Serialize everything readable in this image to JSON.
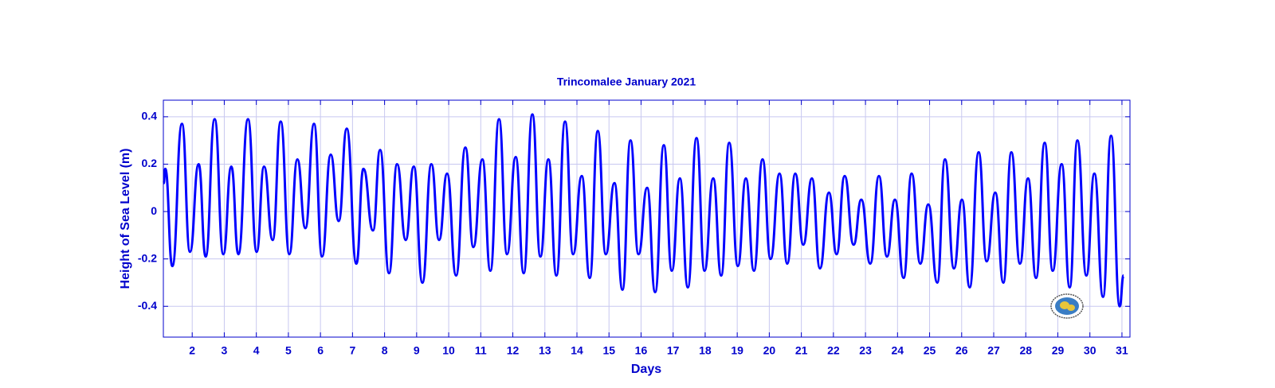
{
  "chart_data": {
    "type": "line",
    "title": "Trincomalee  January 2021",
    "x_label": "Days",
    "y_label": "Height of Sea Level (m)",
    "color": "#0000ff",
    "grid": true,
    "xlim": [
      1.1,
      31.25
    ],
    "ylim": [
      -0.53,
      0.47
    ],
    "xticks": [
      2,
      3,
      4,
      5,
      6,
      7,
      8,
      9,
      10,
      11,
      12,
      13,
      14,
      15,
      16,
      17,
      18,
      19,
      20,
      21,
      22,
      23,
      24,
      25,
      26,
      27,
      28,
      29,
      30,
      31
    ],
    "yticks": [
      0.4,
      0.2,
      0,
      -0.2,
      -0.4
    ],
    "x": [
      1.11,
      1.16,
      1.38,
      1.68,
      1.93,
      2.2,
      2.42,
      2.7,
      2.97,
      3.22,
      3.44,
      3.74,
      4.01,
      4.24,
      4.51,
      4.76,
      5.03,
      5.28,
      5.53,
      5.8,
      6.05,
      6.32,
      6.57,
      6.82,
      7.12,
      7.34,
      7.64,
      7.86,
      8.14,
      8.39,
      8.66,
      8.91,
      9.18,
      9.46,
      9.7,
      9.95,
      10.23,
      10.52,
      10.77,
      11.05,
      11.3,
      11.57,
      11.82,
      12.09,
      12.34,
      12.61,
      12.86,
      13.11,
      13.36,
      13.63,
      13.88,
      14.15,
      14.4,
      14.65,
      14.9,
      15.17,
      15.42,
      15.67,
      15.92,
      16.19,
      16.44,
      16.71,
      16.96,
      17.21,
      17.46,
      17.73,
      17.98,
      18.25,
      18.5,
      18.75,
      19.02,
      19.27,
      19.52,
      19.79,
      20.04,
      20.32,
      20.56,
      20.81,
      21.06,
      21.33,
      21.58,
      21.86,
      22.1,
      22.35,
      22.63,
      22.87,
      23.15,
      23.42,
      23.67,
      23.92,
      24.19,
      24.44,
      24.71,
      24.96,
      25.24,
      25.48,
      25.76,
      26.01,
      26.25,
      26.53,
      26.78,
      27.05,
      27.3,
      27.55,
      27.82,
      28.07,
      28.32,
      28.59,
      28.84,
      29.12,
      29.37,
      29.61,
      29.89,
      30.14,
      30.41,
      30.66,
      30.93,
      31.05
    ],
    "values": [
      0.12,
      0.18,
      -0.23,
      0.37,
      -0.17,
      0.2,
      -0.19,
      0.39,
      -0.18,
      0.19,
      -0.18,
      0.39,
      -0.17,
      0.19,
      -0.12,
      0.38,
      -0.18,
      0.22,
      -0.07,
      0.37,
      -0.19,
      0.24,
      -0.04,
      0.35,
      -0.22,
      0.18,
      -0.08,
      0.26,
      -0.26,
      0.2,
      -0.12,
      0.19,
      -0.3,
      0.2,
      -0.12,
      0.16,
      -0.27,
      0.27,
      -0.15,
      0.22,
      -0.25,
      0.39,
      -0.18,
      0.23,
      -0.26,
      0.41,
      -0.19,
      0.22,
      -0.27,
      0.38,
      -0.18,
      0.15,
      -0.28,
      0.34,
      -0.18,
      0.12,
      -0.33,
      0.3,
      -0.18,
      0.1,
      -0.34,
      0.28,
      -0.25,
      0.14,
      -0.32,
      0.31,
      -0.25,
      0.14,
      -0.27,
      0.29,
      -0.23,
      0.14,
      -0.25,
      0.22,
      -0.2,
      0.16,
      -0.22,
      0.16,
      -0.14,
      0.14,
      -0.24,
      0.08,
      -0.18,
      0.15,
      -0.14,
      0.05,
      -0.22,
      0.15,
      -0.19,
      0.05,
      -0.28,
      0.16,
      -0.22,
      0.03,
      -0.3,
      0.22,
      -0.24,
      0.05,
      -0.32,
      0.25,
      -0.21,
      0.08,
      -0.3,
      0.25,
      -0.22,
      0.14,
      -0.28,
      0.29,
      -0.25,
      0.2,
      -0.32,
      0.3,
      -0.27,
      0.16,
      -0.36,
      0.32,
      -0.4,
      -0.27
    ]
  }
}
